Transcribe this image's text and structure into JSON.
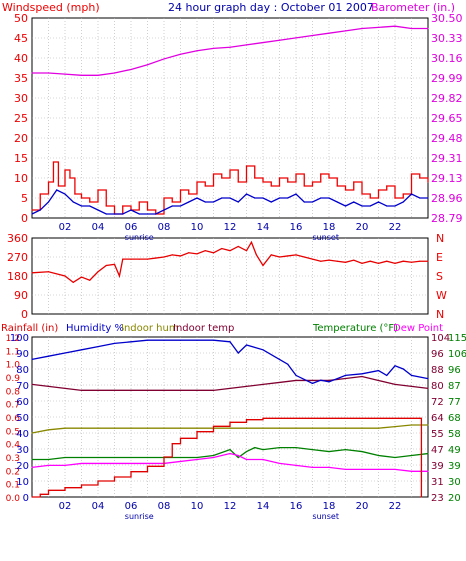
{
  "title": "24 hour graph day : October 01 2007",
  "colors": {
    "wind": "#ee0000",
    "gust": "#ee0000",
    "baro": "#e000e0",
    "dir": "#e80000",
    "rain": "#e00000",
    "humidity": "#0000cc",
    "indoor_hum": "#888800",
    "indoor_temp": "#800030",
    "temperature": "#008000",
    "dewpoint": "#ff00ff",
    "frame": "#000000",
    "grid": "#b0b0b0"
  },
  "chart_data": [
    {
      "type": "line",
      "name": "wind-barometer",
      "left_axis_label": "Windspeed (mph)",
      "right_axis_label": "Barometer (in.)",
      "x_tick_labels": [
        "02",
        "04",
        "06",
        "08",
        "10",
        "12",
        "14",
        "16",
        "18",
        "20",
        "22"
      ],
      "x_annotations": [
        "sunrise",
        "sunset"
      ],
      "y_ticks_left": [
        "0",
        "5",
        "10",
        "15",
        "20",
        "25",
        "30",
        "35",
        "40",
        "45",
        "50"
      ],
      "y_ticks_right": [
        "28.79",
        "28.96",
        "29.13",
        "29.31",
        "29.48",
        "29.65",
        "29.82",
        "29.99",
        "30.16",
        "30.33",
        "30.50"
      ],
      "ylim_left": [
        0,
        50
      ],
      "ylim_right": [
        28.79,
        30.5
      ],
      "x_range_hours": [
        0,
        24
      ],
      "grid": true,
      "series": [
        {
          "name": "Barometer",
          "axis": "right",
          "x": [
            0,
            1,
            2,
            3,
            4,
            5,
            6,
            7,
            8,
            9,
            10,
            11,
            12,
            13,
            14,
            15,
            16,
            17,
            18,
            19,
            20,
            21,
            22,
            23,
            24
          ],
          "y": [
            30.03,
            30.03,
            30.02,
            30.01,
            30.01,
            30.03,
            30.06,
            30.1,
            30.15,
            30.19,
            30.22,
            30.24,
            30.25,
            30.27,
            30.29,
            30.31,
            30.33,
            30.35,
            30.37,
            30.39,
            30.41,
            30.42,
            30.43,
            30.41,
            30.41
          ]
        },
        {
          "name": "Gust",
          "axis": "left",
          "step": true,
          "x": [
            0,
            0.5,
            1,
            1.3,
            1.6,
            2,
            2.3,
            2.6,
            3,
            3.5,
            4,
            4.5,
            5,
            5.5,
            6,
            6.5,
            7,
            7.5,
            8,
            8.5,
            9,
            9.5,
            10,
            10.5,
            11,
            11.5,
            12,
            12.5,
            13,
            13.5,
            14,
            14.5,
            15,
            15.5,
            16,
            16.5,
            17,
            17.5,
            18,
            18.5,
            19,
            19.5,
            20,
            20.5,
            21,
            21.5,
            22,
            22.5,
            23,
            23.5,
            24
          ],
          "y": [
            2,
            6,
            9,
            14,
            8,
            12,
            10,
            6,
            5,
            4,
            7,
            3,
            1,
            3,
            2,
            4,
            2,
            1,
            5,
            4,
            7,
            6,
            9,
            8,
            11,
            10,
            12,
            9,
            13,
            10,
            9,
            8,
            10,
            9,
            11,
            8,
            9,
            11,
            10,
            8,
            7,
            9,
            6,
            5,
            7,
            8,
            5,
            6,
            11,
            10,
            9
          ]
        },
        {
          "name": "Windspeed",
          "axis": "left",
          "x": [
            0,
            0.5,
            1,
            1.5,
            2,
            2.5,
            3,
            3.5,
            4,
            4.5,
            5,
            5.5,
            6,
            6.5,
            7,
            7.5,
            8,
            8.5,
            9,
            9.5,
            10,
            10.5,
            11,
            11.5,
            12,
            12.5,
            13,
            13.5,
            14,
            14.5,
            15,
            15.5,
            16,
            16.5,
            17,
            17.5,
            18,
            18.5,
            19,
            19.5,
            20,
            20.5,
            21,
            21.5,
            22,
            22.5,
            23,
            23.5,
            24
          ],
          "y": [
            1,
            2,
            4,
            7,
            6,
            4,
            3,
            3,
            2,
            1,
            1,
            1,
            2,
            1,
            1,
            1,
            2,
            3,
            3,
            4,
            5,
            4,
            4,
            5,
            5,
            4,
            6,
            5,
            5,
            4,
            5,
            5,
            6,
            4,
            4,
            5,
            5,
            4,
            3,
            4,
            3,
            3,
            4,
            3,
            3,
            4,
            6,
            5,
            5
          ]
        }
      ]
    },
    {
      "type": "line",
      "name": "wind-direction",
      "left_axis_ticks": [
        "0",
        "90",
        "180",
        "270",
        "360"
      ],
      "right_axis_ticks": [
        "N",
        "W",
        "S",
        "E",
        "N"
      ],
      "ylim": [
        0,
        360
      ],
      "x_range_hours": [
        0,
        24
      ],
      "grid": true,
      "series": [
        {
          "name": "Direction",
          "x": [
            0,
            1,
            2,
            2.5,
            3,
            3.5,
            4,
            4.5,
            5,
            5.3,
            5.5,
            6,
            6.5,
            7,
            7.5,
            8,
            8.5,
            9,
            9.5,
            10,
            10.5,
            11,
            11.5,
            12,
            12.5,
            13,
            13.3,
            13.6,
            14,
            14.5,
            15,
            15.5,
            16,
            16.5,
            17,
            17.5,
            18,
            18.5,
            19,
            19.5,
            20,
            20.5,
            21,
            21.5,
            22,
            22.5,
            23,
            23.5,
            24
          ],
          "y": [
            195,
            200,
            180,
            150,
            175,
            160,
            200,
            230,
            235,
            180,
            260,
            260,
            260,
            260,
            265,
            270,
            280,
            275,
            290,
            285,
            300,
            290,
            310,
            300,
            320,
            300,
            340,
            280,
            230,
            280,
            270,
            275,
            280,
            270,
            260,
            250,
            255,
            250,
            245,
            255,
            240,
            250,
            240,
            250,
            240,
            250,
            245,
            250,
            250
          ]
        }
      ]
    },
    {
      "type": "line",
      "name": "rain-humidity-temperature",
      "legend": [
        "Rainfall (in)",
        "Humidity %",
        "Indoor hum",
        "Indoor temp",
        "Temperature (°F)",
        "Dew Point"
      ],
      "x_tick_labels": [
        "02",
        "04",
        "06",
        "08",
        "10",
        "12",
        "14",
        "16",
        "18",
        "20",
        "22"
      ],
      "x_annotations": [
        "sunrise",
        "sunset"
      ],
      "rain_ticks": [
        "0.0",
        "0.1",
        "0.2",
        "0.3",
        "0.4",
        "0.5",
        "0.6",
        "0.7",
        "0.8",
        "0.9",
        "1.0",
        "1.1",
        "1.2"
      ],
      "humidity_ticks": [
        "0",
        "10",
        "20",
        "30",
        "40",
        "50",
        "60",
        "70",
        "80",
        "90",
        "100"
      ],
      "temp_ticks_left": [
        "23",
        "31",
        "39",
        "47",
        "55",
        "64",
        "72",
        "80",
        "88",
        "96",
        "104"
      ],
      "temp_ticks_right": [
        "20",
        "30",
        "39",
        "49",
        "58",
        "68",
        "77",
        "87",
        "96",
        "106",
        "115"
      ],
      "ylim_humidity": [
        0,
        100
      ],
      "ylim_temp": [
        23,
        104
      ],
      "ylim_rain": [
        0,
        1.2
      ],
      "x_range_hours": [
        0,
        24
      ],
      "grid": true,
      "series": [
        {
          "name": "Humidity %",
          "axis": "humidity",
          "x": [
            0,
            1,
            2,
            3,
            4,
            5,
            6,
            7,
            8,
            9,
            10,
            11,
            12,
            12.5,
            13,
            14,
            15,
            15.5,
            16,
            17,
            17.5,
            18,
            19,
            20,
            21,
            21.5,
            22,
            22.5,
            23,
            24
          ],
          "y": [
            86,
            88,
            90,
            92,
            94,
            96,
            97,
            98,
            98,
            98,
            98,
            98,
            97,
            90,
            95,
            92,
            86,
            83,
            76,
            71,
            73,
            72,
            76,
            77,
            79,
            76,
            82,
            80,
            76,
            74
          ]
        },
        {
          "name": "Indoor temp",
          "axis": "temp",
          "x": [
            0,
            1,
            2,
            3,
            4,
            5,
            6,
            7,
            8,
            9,
            10,
            11,
            12,
            13,
            14,
            15,
            16,
            17,
            18,
            19,
            20,
            21,
            22,
            23,
            24
          ],
          "y": [
            80,
            79,
            78,
            77,
            77,
            77,
            77,
            77,
            77,
            77,
            77,
            77,
            78,
            79,
            80,
            81,
            82,
            82,
            82,
            83,
            84,
            82,
            80,
            79,
            78
          ]
        },
        {
          "name": "Indoor hum",
          "axis": "humidity",
          "x": [
            0,
            1,
            2,
            3,
            4,
            5,
            6,
            7,
            8,
            9,
            10,
            11,
            12,
            13,
            14,
            15,
            16,
            17,
            18,
            19,
            20,
            21,
            22,
            23,
            24
          ],
          "y": [
            40,
            42,
            43,
            43,
            43,
            43,
            43,
            43,
            43,
            43,
            43,
            43,
            43,
            43,
            43,
            43,
            43,
            43,
            43,
            43,
            43,
            43,
            44,
            45,
            45
          ]
        },
        {
          "name": "Temperature (°F)",
          "axis": "temp",
          "x": [
            0,
            1,
            2,
            3,
            4,
            5,
            6,
            7,
            8,
            9,
            10,
            11,
            12,
            12.5,
            13,
            13.5,
            14,
            15,
            16,
            17,
            18,
            19,
            20,
            21,
            22,
            23,
            24
          ],
          "y": [
            42,
            42,
            43,
            43,
            43,
            43,
            43,
            43,
            43,
            43,
            43,
            44,
            47,
            43,
            46,
            48,
            47,
            48,
            48,
            47,
            46,
            47,
            46,
            44,
            43,
            44,
            45
          ]
        },
        {
          "name": "Dew Point",
          "axis": "temp",
          "x": [
            0,
            1,
            2,
            3,
            4,
            5,
            6,
            7,
            8,
            9,
            10,
            11,
            12,
            12.5,
            13,
            14,
            15,
            16,
            17,
            18,
            19,
            20,
            21,
            22,
            23,
            24
          ],
          "y": [
            38,
            39,
            39,
            40,
            40,
            40,
            40,
            40,
            40,
            41,
            42,
            43,
            45,
            44,
            42,
            42,
            40,
            39,
            38,
            38,
            37,
            37,
            37,
            37,
            36,
            36
          ]
        },
        {
          "name": "Rainfall (in)",
          "axis": "rain",
          "x": [
            0,
            0.5,
            1,
            2,
            3,
            4,
            5,
            6,
            7,
            8,
            8.5,
            9,
            10,
            11,
            12,
            13,
            14,
            15,
            16,
            17,
            18,
            19,
            20,
            21,
            22,
            23,
            23.5,
            23.6
          ],
          "y": [
            0.0,
            0.02,
            0.05,
            0.07,
            0.09,
            0.12,
            0.15,
            0.19,
            0.23,
            0.3,
            0.4,
            0.44,
            0.49,
            0.53,
            0.56,
            0.58,
            0.59,
            0.59,
            0.59,
            0.59,
            0.59,
            0.59,
            0.59,
            0.59,
            0.59,
            0.59,
            0.59,
            0.0
          ]
        }
      ]
    }
  ]
}
